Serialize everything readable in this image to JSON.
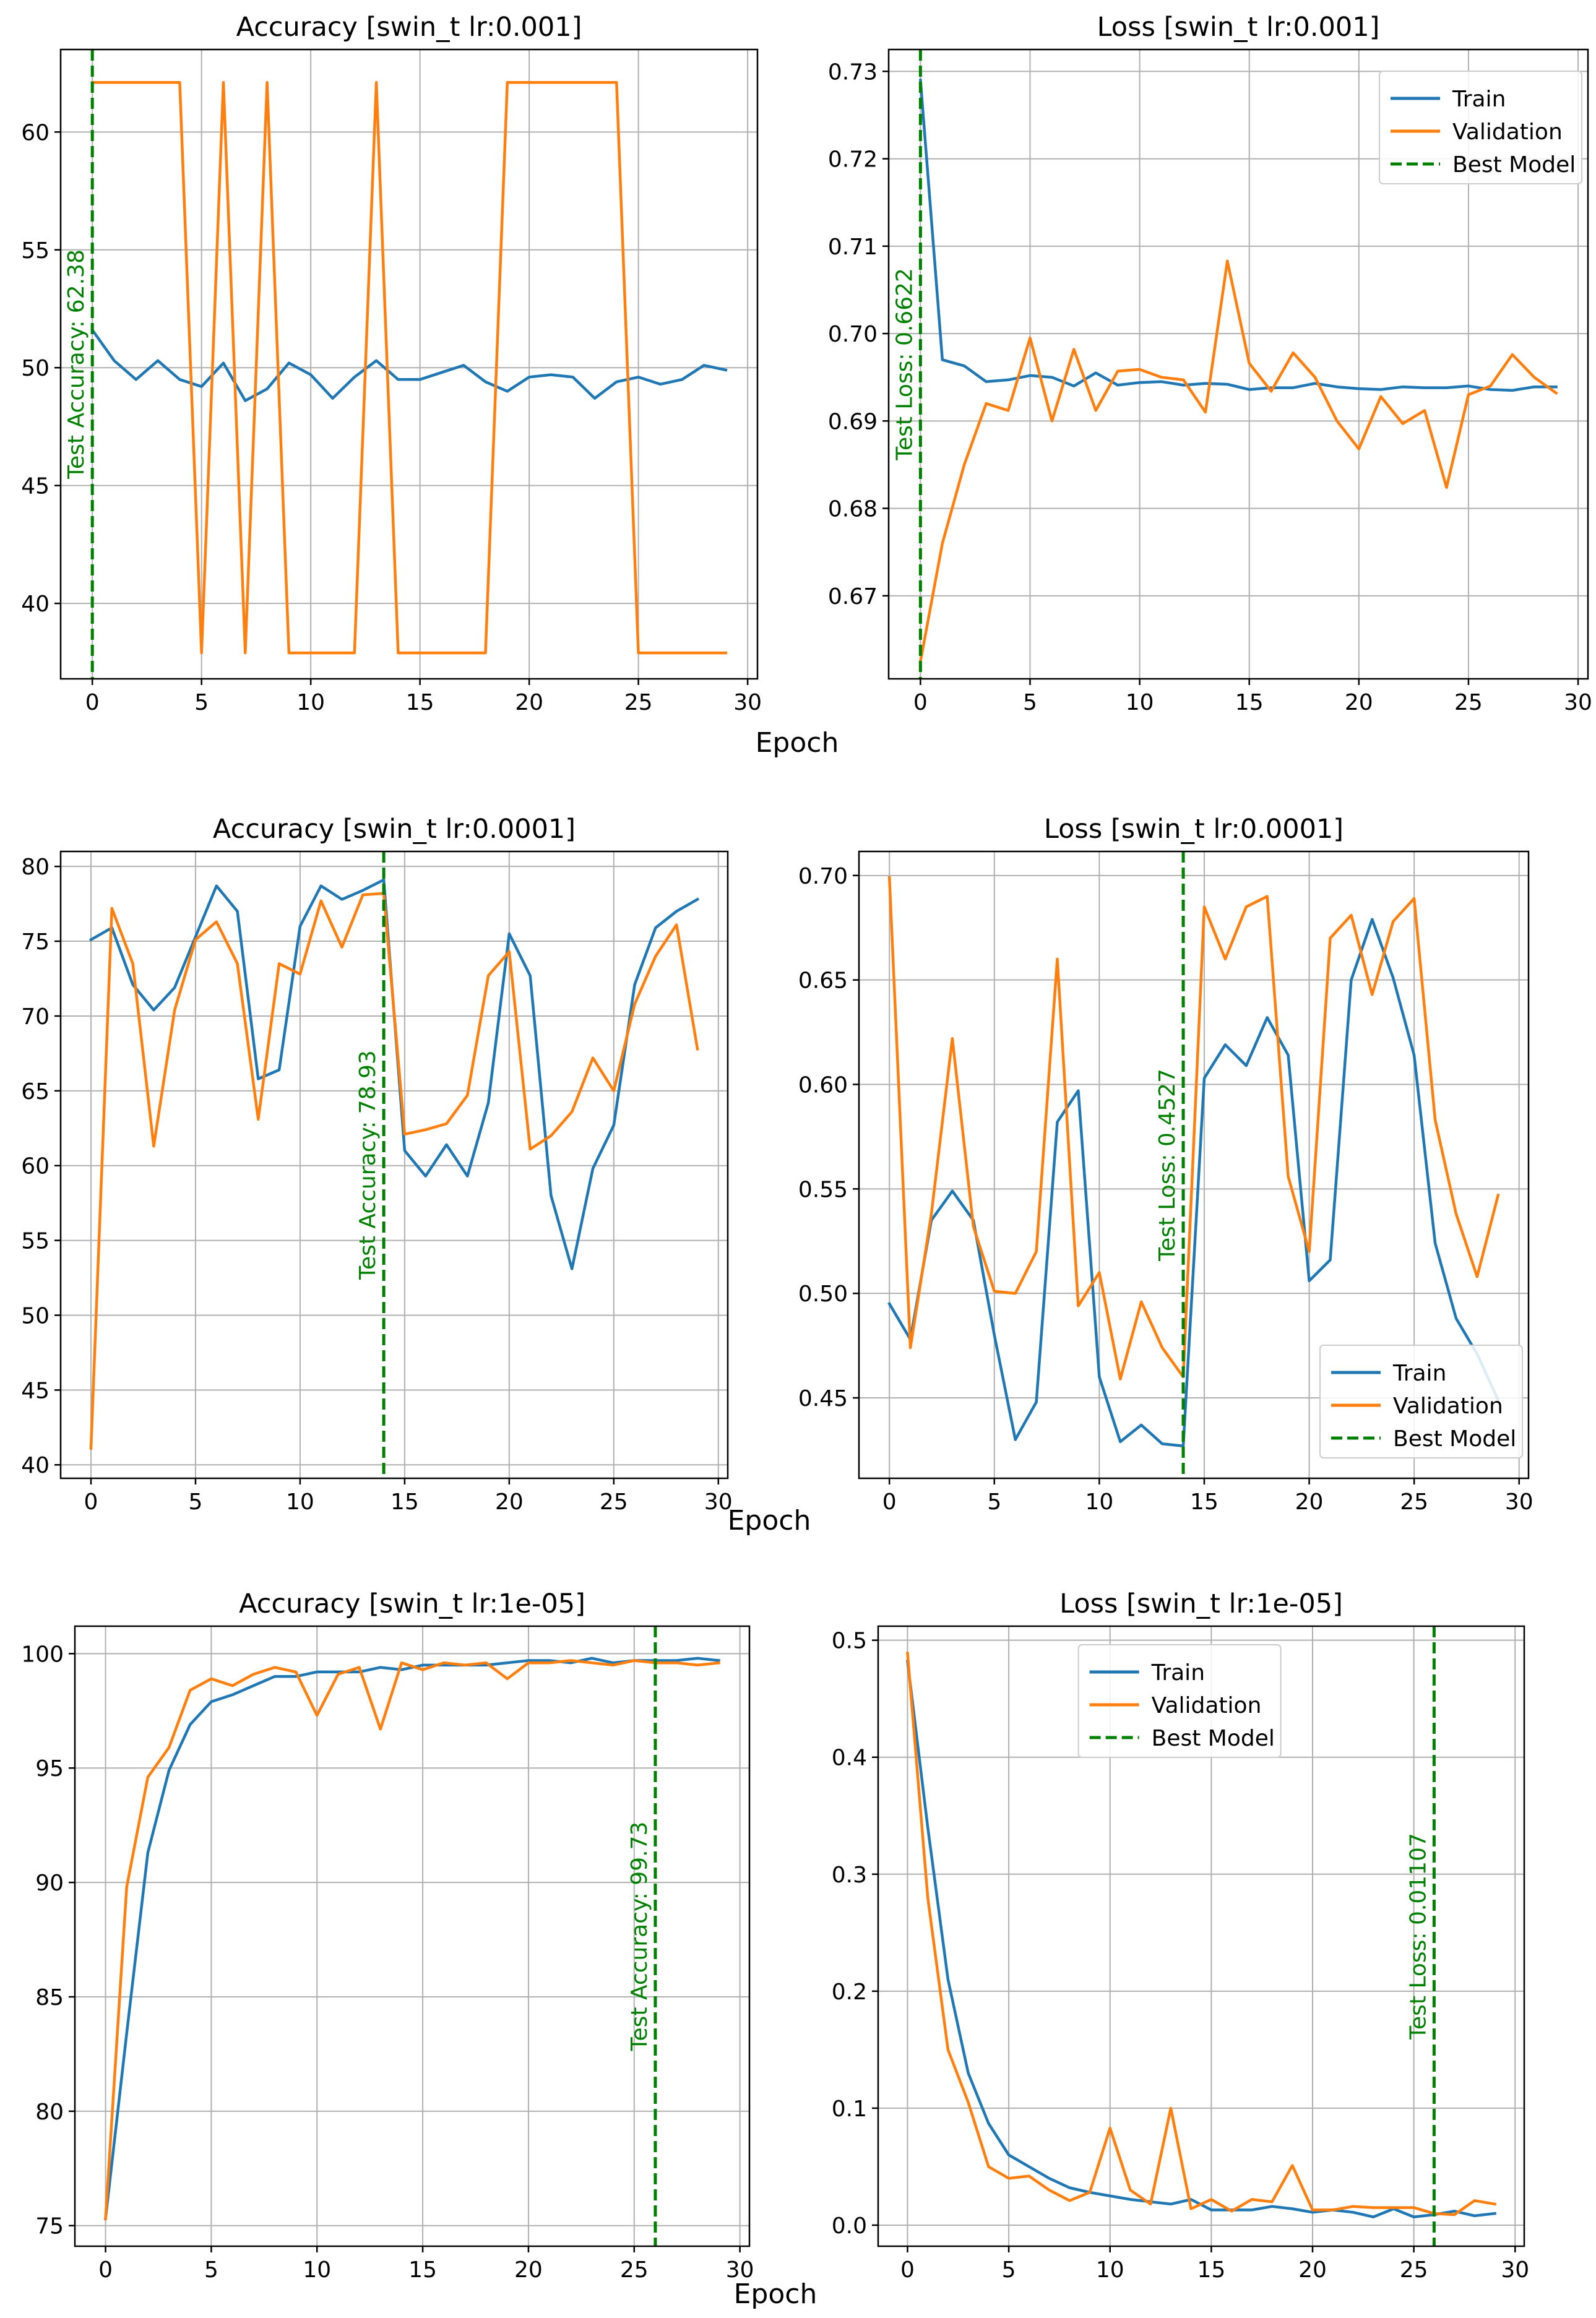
{
  "epoch_label": "Epoch",
  "colors": {
    "train": "#1f77b4",
    "validation": "#ff7f0e",
    "best": "#008000",
    "grid": "#b0b0b0"
  },
  "chart_data": [
    {
      "type": "line",
      "title": "Accuracy [swin_t lr:0.001]",
      "xlabel": "",
      "ylabel": "",
      "xlim": [
        -1.45,
        30.45
      ],
      "ylim": [
        36.8,
        63.5
      ],
      "xticks": [
        0,
        5,
        10,
        15,
        20,
        25,
        30
      ],
      "yticks": [
        40,
        45,
        50,
        55,
        60
      ],
      "x": [
        0,
        1,
        2,
        3,
        4,
        5,
        6,
        7,
        8,
        9,
        10,
        11,
        12,
        13,
        14,
        15,
        16,
        17,
        18,
        19,
        20,
        21,
        22,
        23,
        24,
        25,
        26,
        27,
        28,
        29
      ],
      "series": [
        {
          "name": "Train",
          "values": [
            51.6,
            50.3,
            49.5,
            50.3,
            49.5,
            49.2,
            50.2,
            48.6,
            49.1,
            50.2,
            49.7,
            48.7,
            49.6,
            50.3,
            49.5,
            49.5,
            49.8,
            50.1,
            49.4,
            49.0,
            49.6,
            49.7,
            49.6,
            48.7,
            49.4,
            49.6,
            49.3,
            49.5,
            50.1,
            49.9
          ]
        },
        {
          "name": "Validation",
          "values": [
            62.1,
            62.1,
            62.1,
            62.1,
            62.1,
            37.9,
            62.1,
            37.9,
            62.1,
            37.9,
            37.9,
            37.9,
            37.9,
            62.1,
            37.9,
            37.9,
            37.9,
            37.9,
            37.9,
            62.1,
            62.1,
            62.1,
            62.1,
            62.1,
            62.1,
            37.9,
            37.9,
            37.9,
            37.9,
            37.9
          ]
        }
      ],
      "best_epoch": 0,
      "best_label": "Test Accuracy: 62.38",
      "legend": {
        "show": false,
        "loc": ""
      }
    },
    {
      "type": "line",
      "title": "Loss [swin_t lr:0.001]",
      "xlabel": "",
      "ylabel": "",
      "xlim": [
        -1.45,
        30.45
      ],
      "ylim": [
        0.6605,
        0.7325
      ],
      "xticks": [
        0,
        5,
        10,
        15,
        20,
        25,
        30
      ],
      "yticks": [
        0.67,
        0.68,
        0.69,
        0.7,
        0.71,
        0.72,
        0.73
      ],
      "ytick_decimals": 2,
      "x": [
        0,
        1,
        2,
        3,
        4,
        5,
        6,
        7,
        8,
        9,
        10,
        11,
        12,
        13,
        14,
        15,
        16,
        17,
        18,
        19,
        20,
        21,
        22,
        23,
        24,
        25,
        26,
        27,
        28,
        29
      ],
      "series": [
        {
          "name": "Train",
          "values": [
            0.729,
            0.697,
            0.6963,
            0.6945,
            0.6947,
            0.6952,
            0.695,
            0.694,
            0.6955,
            0.6941,
            0.6944,
            0.6945,
            0.6941,
            0.6943,
            0.6942,
            0.6936,
            0.6938,
            0.6938,
            0.6943,
            0.6939,
            0.6937,
            0.6936,
            0.6939,
            0.6938,
            0.6938,
            0.694,
            0.6936,
            0.6935,
            0.6939,
            0.6939
          ]
        },
        {
          "name": "Validation",
          "values": [
            0.6625,
            0.676,
            0.685,
            0.692,
            0.6912,
            0.6995,
            0.69,
            0.6982,
            0.6912,
            0.6957,
            0.6959,
            0.695,
            0.6947,
            0.691,
            0.7083,
            0.6966,
            0.6934,
            0.6978,
            0.695,
            0.69,
            0.6868,
            0.6928,
            0.6897,
            0.6912,
            0.6824,
            0.693,
            0.694,
            0.6976,
            0.695,
            0.6932
          ]
        }
      ],
      "best_epoch": 0,
      "best_label": "Test Loss: 0.6622",
      "legend": {
        "show": true,
        "loc": "top-right",
        "entries": [
          "Train",
          "Validation",
          "Best Model"
        ]
      }
    },
    {
      "type": "line",
      "title": "Accuracy [swin_t lr:0.0001]",
      "xlabel": "",
      "ylabel": "",
      "xlim": [
        -1.45,
        30.45
      ],
      "ylim": [
        39.1,
        81.0
      ],
      "xticks": [
        0,
        5,
        10,
        15,
        20,
        25,
        30
      ],
      "yticks": [
        40,
        45,
        50,
        55,
        60,
        65,
        70,
        75,
        80
      ],
      "x": [
        0,
        1,
        2,
        3,
        4,
        5,
        6,
        7,
        8,
        9,
        10,
        11,
        12,
        13,
        14,
        15,
        16,
        17,
        18,
        19,
        20,
        21,
        22,
        23,
        24,
        25,
        26,
        27,
        28,
        29
      ],
      "series": [
        {
          "name": "Train",
          "values": [
            75.1,
            75.9,
            72.1,
            70.4,
            71.9,
            75.3,
            78.7,
            77.0,
            65.8,
            66.4,
            76.0,
            78.7,
            77.8,
            78.4,
            79.1,
            61.0,
            59.3,
            61.4,
            59.3,
            64.2,
            75.5,
            72.7,
            58.0,
            53.1,
            59.8,
            62.7,
            72.1,
            75.9,
            77.0,
            77.8
          ]
        },
        {
          "name": "Validation",
          "values": [
            41.1,
            77.2,
            73.5,
            61.3,
            70.4,
            75.1,
            76.3,
            73.5,
            63.1,
            73.5,
            72.8,
            77.7,
            74.6,
            78.1,
            78.2,
            62.1,
            62.4,
            62.8,
            64.7,
            72.7,
            74.3,
            61.1,
            62.0,
            63.6,
            67.2,
            65.0,
            70.8,
            74.0,
            76.1,
            67.8
          ]
        }
      ],
      "best_epoch": 14,
      "best_label": "Test Accuracy: 78.93",
      "legend": {
        "show": false,
        "loc": ""
      }
    },
    {
      "type": "line",
      "title": "Loss [swin_t lr:0.0001]",
      "xlabel": "",
      "ylabel": "",
      "xlim": [
        -1.45,
        30.45
      ],
      "ylim": [
        0.4115,
        0.7115
      ],
      "xticks": [
        0,
        5,
        10,
        15,
        20,
        25,
        30
      ],
      "yticks": [
        0.45,
        0.5,
        0.55,
        0.6,
        0.65,
        0.7
      ],
      "ytick_decimals": 2,
      "x": [
        0,
        1,
        2,
        3,
        4,
        5,
        6,
        7,
        8,
        9,
        10,
        11,
        12,
        13,
        14,
        15,
        16,
        17,
        18,
        19,
        20,
        21,
        22,
        23,
        24,
        25,
        26,
        27,
        28,
        29
      ],
      "series": [
        {
          "name": "Train",
          "values": [
            0.495,
            0.478,
            0.535,
            0.549,
            0.535,
            0.48,
            0.43,
            0.448,
            0.582,
            0.597,
            0.46,
            0.429,
            0.437,
            0.428,
            0.427,
            0.603,
            0.619,
            0.609,
            0.632,
            0.614,
            0.506,
            0.516,
            0.65,
            0.679,
            0.651,
            0.614,
            0.524,
            0.488,
            0.471,
            0.449
          ]
        },
        {
          "name": "Validation",
          "values": [
            0.699,
            0.474,
            0.538,
            0.622,
            0.532,
            0.501,
            0.5,
            0.52,
            0.66,
            0.494,
            0.51,
            0.459,
            0.496,
            0.474,
            0.46,
            0.685,
            0.66,
            0.685,
            0.69,
            0.556,
            0.52,
            0.67,
            0.681,
            0.643,
            0.678,
            0.689,
            0.583,
            0.538,
            0.508,
            0.547
          ]
        }
      ],
      "best_epoch": 14,
      "best_label": "Test Loss: 0.4527",
      "legend": {
        "show": true,
        "loc": "bottom-right",
        "entries": [
          "Train",
          "Validation",
          "Best Model"
        ]
      }
    },
    {
      "type": "line",
      "title": "Accuracy [swin_t lr:1e-05]",
      "xlabel": "",
      "ylabel": "",
      "xlim": [
        -1.45,
        30.45
      ],
      "ylim": [
        74.1,
        101.2
      ],
      "xticks": [
        0,
        5,
        10,
        15,
        20,
        25,
        30
      ],
      "yticks": [
        75,
        80,
        85,
        90,
        95,
        100
      ],
      "x": [
        0,
        1,
        2,
        3,
        4,
        5,
        6,
        7,
        8,
        9,
        10,
        11,
        12,
        13,
        14,
        15,
        16,
        17,
        18,
        19,
        20,
        21,
        22,
        23,
        24,
        25,
        26,
        27,
        28,
        29
      ],
      "series": [
        {
          "name": "Train",
          "values": [
            75.3,
            83.4,
            91.3,
            94.9,
            96.9,
            97.9,
            98.2,
            98.6,
            99.0,
            99.0,
            99.2,
            99.2,
            99.2,
            99.4,
            99.3,
            99.5,
            99.5,
            99.5,
            99.5,
            99.6,
            99.7,
            99.7,
            99.6,
            99.8,
            99.6,
            99.7,
            99.7,
            99.7,
            99.8,
            99.7
          ]
        },
        {
          "name": "Validation",
          "values": [
            75.3,
            89.8,
            94.6,
            95.9,
            98.4,
            98.9,
            98.6,
            99.1,
            99.4,
            99.2,
            97.3,
            99.1,
            99.4,
            96.7,
            99.6,
            99.3,
            99.6,
            99.5,
            99.6,
            98.9,
            99.6,
            99.6,
            99.7,
            99.6,
            99.5,
            99.7,
            99.6,
            99.6,
            99.5,
            99.6
          ]
        }
      ],
      "best_epoch": 26,
      "best_label": "Test Accuracy: 99.73",
      "legend": {
        "show": false,
        "loc": ""
      }
    },
    {
      "type": "line",
      "title": "Loss [swin_t lr:1e-05]",
      "xlabel": "",
      "ylabel": "",
      "xlim": [
        -1.45,
        30.45
      ],
      "ylim": [
        -0.018,
        0.512
      ],
      "xticks": [
        0,
        5,
        10,
        15,
        20,
        25,
        30
      ],
      "yticks": [
        0.0,
        0.1,
        0.2,
        0.3,
        0.4,
        0.5
      ],
      "ytick_decimals": 1,
      "x": [
        0,
        1,
        2,
        3,
        4,
        5,
        6,
        7,
        8,
        9,
        10,
        11,
        12,
        13,
        14,
        15,
        16,
        17,
        18,
        19,
        20,
        21,
        22,
        23,
        24,
        25,
        26,
        27,
        28,
        29
      ],
      "series": [
        {
          "name": "Train",
          "values": [
            0.482,
            0.34,
            0.21,
            0.13,
            0.087,
            0.06,
            0.05,
            0.04,
            0.032,
            0.028,
            0.025,
            0.022,
            0.02,
            0.018,
            0.022,
            0.013,
            0.013,
            0.013,
            0.016,
            0.014,
            0.011,
            0.013,
            0.011,
            0.007,
            0.014,
            0.007,
            0.009,
            0.012,
            0.008,
            0.01
          ]
        },
        {
          "name": "Validation",
          "values": [
            0.489,
            0.28,
            0.15,
            0.105,
            0.05,
            0.04,
            0.042,
            0.03,
            0.021,
            0.028,
            0.083,
            0.03,
            0.018,
            0.1,
            0.014,
            0.022,
            0.012,
            0.022,
            0.02,
            0.051,
            0.013,
            0.013,
            0.016,
            0.015,
            0.015,
            0.015,
            0.01,
            0.009,
            0.021,
            0.018
          ]
        }
      ],
      "best_epoch": 26,
      "best_label": "Test Loss: 0.01107",
      "legend": {
        "show": true,
        "loc": "top-center",
        "entries": [
          "Train",
          "Validation",
          "Best Model"
        ]
      }
    }
  ]
}
